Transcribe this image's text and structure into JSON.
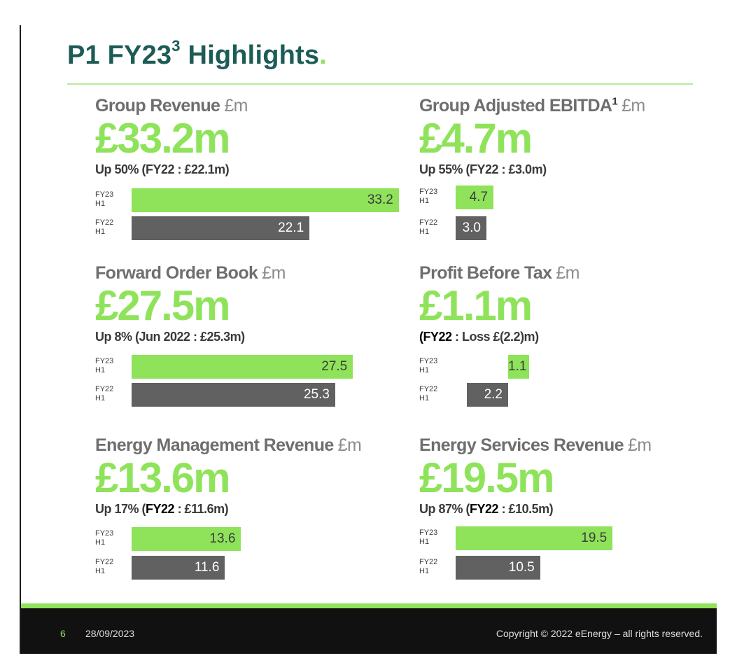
{
  "title": {
    "main": "P1 FY23",
    "sup": "3",
    "rest": " Highlights",
    "dot": "."
  },
  "metrics": [
    {
      "label": "Group Revenue",
      "label_sup": "",
      "unit": "£m",
      "value": "£33.2m",
      "sub": "Up 50% (FY22 : £22.1m)",
      "bars": [
        {
          "line1": "FY23",
          "line2": "H1",
          "value": 33.2,
          "text": "33.2"
        },
        {
          "line1": "FY22",
          "line2": "H1",
          "value": 22.1,
          "text": "22.1"
        }
      ]
    },
    {
      "label": "Group Adjusted EBITDA",
      "label_sup": "1",
      "unit": "£m",
      "value": "£4.7m",
      "sub": "Up 55% (FY22 : £3.0m)",
      "bars": [
        {
          "line1": "FY23",
          "line2": "H1",
          "value": 4.7,
          "text": "4.7"
        },
        {
          "line1": "FY22",
          "line2": "H1",
          "value": 3.0,
          "text": "3.0"
        }
      ]
    },
    {
      "label": "Forward Order Book",
      "label_sup": "",
      "unit": "£m",
      "value": "£27.5m",
      "sub": "Up 8% (Jun 2022 : £25.3m)",
      "bars": [
        {
          "line1": "FY23",
          "line2": "H1",
          "value": 27.5,
          "text": "27.5"
        },
        {
          "line1": "FY22",
          "line2": "H1",
          "value": 25.3,
          "text": "25.3"
        }
      ]
    },
    {
      "label": "Profit Before Tax",
      "label_sup": "",
      "unit": "£m",
      "value": "£1.1m",
      "sub_bold": "(FY22",
      "sub_rest": " : Loss £(2.2)m)",
      "bars": [
        {
          "line1": "FY23",
          "line2": "H1",
          "value": 1.1,
          "text": "1.1"
        },
        {
          "line1": "FY22",
          "line2": "H1",
          "value": -2.2,
          "text": "2.2"
        }
      ]
    },
    {
      "label": "Energy Management Revenue",
      "label_sup": "",
      "unit": "£m",
      "value": "£13.6m",
      "sub_pre": "Up 17% (",
      "sub_bold": "FY22",
      "sub_rest": " : £11.6m)",
      "bars": [
        {
          "line1": "FY23",
          "line2": "H1",
          "value": 13.6,
          "text": "13.6"
        },
        {
          "line1": "FY22",
          "line2": "H1",
          "value": 11.6,
          "text": "11.6"
        }
      ]
    },
    {
      "label": "Energy Services Revenue",
      "label_sup": "",
      "unit": "£m",
      "value": "£19.5m",
      "sub_pre": "Up 87% (",
      "sub_bold": "FY22",
      "sub_rest": " : £10.5m)",
      "bars": [
        {
          "line1": "FY23",
          "line2": "H1",
          "value": 19.5,
          "text": "19.5"
        },
        {
          "line1": "FY22",
          "line2": "H1",
          "value": 10.5,
          "text": "10.5"
        }
      ]
    }
  ],
  "footer": {
    "page": "6",
    "date": "28/09/2023",
    "copyright": "Copyright © 2022 eEnergy – all rights reserved."
  },
  "colors": {
    "accent": "#8fe35a",
    "title": "#1d5c56",
    "prev_bar": "#616161",
    "footer_bg": "#111111"
  }
}
